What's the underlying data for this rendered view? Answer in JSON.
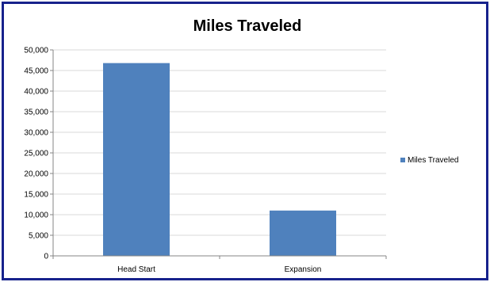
{
  "chart_data": {
    "type": "bar",
    "title": "Miles Traveled",
    "categories": [
      "Head Start",
      "Expansion"
    ],
    "series": [
      {
        "name": "Miles Traveled",
        "values": [
          46800,
          11000
        ],
        "color": "#4f81bd"
      }
    ],
    "ylim": [
      0,
      50000
    ],
    "yticks": [
      "0",
      "5,000",
      "10,000",
      "15,000",
      "20,000",
      "25,000",
      "30,000",
      "35,000",
      "40,000",
      "45,000",
      "50,000"
    ],
    "grid": true,
    "legend": "right",
    "xlabel": "",
    "ylabel": ""
  }
}
